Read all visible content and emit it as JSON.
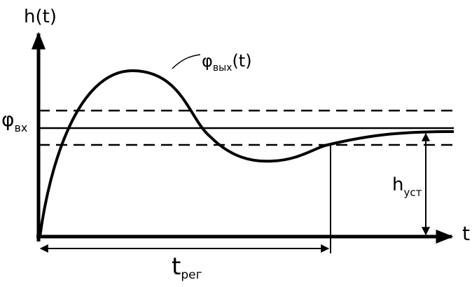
{
  "axes": {
    "y_label": "h(t)",
    "x_label": "t"
  },
  "labels": {
    "input": {
      "symbol": "φ",
      "subscript": "вх"
    },
    "output": {
      "symbol": "φ",
      "subscript": "вых",
      "suffix": "(t)"
    },
    "steady_value": {
      "symbol": "h",
      "subscript": "уст"
    },
    "settling_time": {
      "symbol": "t",
      "subscript": "рег"
    }
  }
}
